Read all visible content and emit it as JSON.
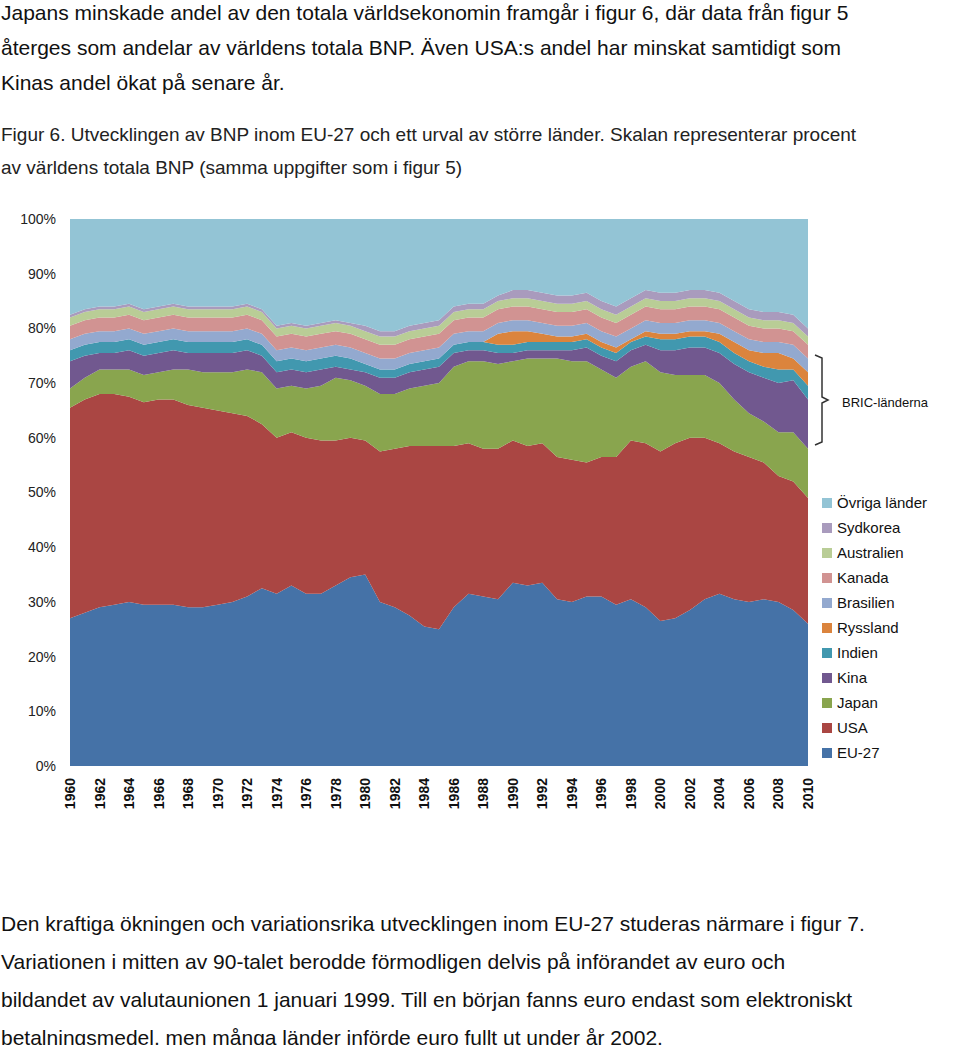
{
  "document": {
    "text_top": [
      "Japans minskade andel av den totala världsekonomin framgår i figur 6, där data från figur 5",
      "återges som andelar av världens totala BNP. Även USA:s andel har minskat samtidigt som",
      "Kinas andel ökat på senare år."
    ],
    "caption": [
      "Figur 6. Utvecklingen av BNP inom EU-27 och ett urval av större länder. Skalan representerar procent",
      "av världens totala BNP (samma uppgifter som i figur 5)"
    ],
    "text_bottom": [
      "Den kraftiga ökningen och variationsrika utvecklingen inom EU-27 studeras närmare i figur 7.",
      "Variationen i mitten av 90-talet berodde förmodligen delvis på införandet av euro och",
      "bildandet av valutaunionen 1 januari 1999. Till en början fanns euro endast som elektroniskt",
      "betalningsmedel, men många länder införde euro fullt ut under år 2002."
    ]
  },
  "chart_data": {
    "type": "area",
    "stacked": true,
    "grid": false,
    "legend": "right",
    "annotations": [
      {
        "text": "BRIC-länderna"
      }
    ],
    "x": [
      1960,
      1961,
      1962,
      1963,
      1964,
      1965,
      1966,
      1967,
      1968,
      1969,
      1970,
      1971,
      1972,
      1973,
      1974,
      1975,
      1976,
      1977,
      1978,
      1979,
      1980,
      1981,
      1982,
      1983,
      1984,
      1985,
      1986,
      1987,
      1988,
      1989,
      1990,
      1991,
      1992,
      1993,
      1994,
      1995,
      1996,
      1997,
      1998,
      1999,
      2000,
      2001,
      2002,
      2003,
      2004,
      2005,
      2006,
      2007,
      2008,
      2009,
      2010
    ],
    "xlim": [
      1960,
      2010
    ],
    "xticks": [
      1960,
      1962,
      1964,
      1966,
      1968,
      1970,
      1972,
      1974,
      1976,
      1978,
      1980,
      1982,
      1984,
      1986,
      1988,
      1990,
      1992,
      1994,
      1996,
      1998,
      2000,
      2002,
      2004,
      2006,
      2008,
      2010
    ],
    "ylim": [
      0,
      100
    ],
    "yticks": [
      {
        "value": 0,
        "label": "0%"
      },
      {
        "value": 10,
        "label": "10%"
      },
      {
        "value": 20,
        "label": "20%"
      },
      {
        "value": 30,
        "label": "30%"
      },
      {
        "value": 40,
        "label": "40%"
      },
      {
        "value": 50,
        "label": "50%"
      },
      {
        "value": 60,
        "label": "60%"
      },
      {
        "value": 70,
        "label": "70%"
      },
      {
        "value": 80,
        "label": "80%"
      },
      {
        "value": 90,
        "label": "90%"
      },
      {
        "value": 100,
        "label": "100%"
      }
    ],
    "series": [
      {
        "name": "EU-27",
        "color": "#4572a7",
        "values": [
          27,
          28,
          29,
          29.5,
          30,
          29.5,
          29.5,
          29.5,
          29,
          29,
          29.5,
          30,
          31,
          32.5,
          31.5,
          33,
          31.5,
          31.5,
          33,
          34.5,
          35,
          30,
          29,
          27.5,
          25.5,
          25,
          29,
          31.5,
          31,
          30.5,
          33.5,
          33,
          33.5,
          30.5,
          30,
          31,
          31,
          29.5,
          30.5,
          29,
          26.5,
          27,
          28.5,
          30.5,
          31.5,
          30.5,
          30,
          30.5,
          30,
          28.5,
          26
        ]
      },
      {
        "name": "USA",
        "color": "#aa4643",
        "values": [
          38.5,
          39,
          39,
          38.5,
          37.5,
          37,
          37.5,
          37.5,
          37,
          36.5,
          35.5,
          34.5,
          33,
          30,
          28.5,
          28,
          28.5,
          28,
          26.5,
          25.5,
          24.5,
          27.5,
          29,
          31,
          33,
          33.5,
          29.5,
          27.5,
          27,
          27.5,
          26,
          25.5,
          25.5,
          26,
          26,
          24.5,
          25.5,
          27,
          29,
          30,
          31,
          32,
          31.5,
          29.5,
          27.5,
          27,
          26.5,
          25,
          23,
          23.5,
          23
        ]
      },
      {
        "name": "Japan",
        "color": "#89a54e",
        "values": [
          3.5,
          4,
          4.5,
          4.5,
          5,
          5,
          5,
          5.5,
          6.5,
          6.5,
          7,
          7.5,
          8.5,
          9.5,
          9,
          8.5,
          9,
          10,
          11.5,
          10.5,
          10,
          10.5,
          10,
          10.5,
          11,
          11.5,
          14.5,
          15,
          16,
          15.5,
          14.5,
          16,
          15.5,
          18,
          18,
          18.5,
          16,
          14.5,
          13.5,
          15,
          14.5,
          12.5,
          11.5,
          11.5,
          11,
          9.5,
          8,
          7.5,
          8,
          9,
          9
        ]
      },
      {
        "name": "Kina",
        "color": "#71588f",
        "values": [
          5,
          4,
          3,
          3,
          3.5,
          3.5,
          3.5,
          3.5,
          3,
          3.5,
          3.5,
          3.5,
          3.5,
          3,
          3,
          3,
          3,
          3,
          2,
          2,
          2.5,
          3,
          3,
          3,
          3,
          3,
          2.5,
          2,
          2,
          2,
          1.5,
          1.5,
          1.5,
          1.5,
          2,
          2.5,
          2.5,
          3,
          3,
          3,
          4,
          4.5,
          5,
          5,
          5.5,
          6.5,
          7.5,
          8,
          9,
          9.5,
          9
        ]
      },
      {
        "name": "Indien",
        "color": "#4198af",
        "values": [
          2,
          2,
          2,
          2,
          2,
          2,
          2,
          2,
          2,
          2,
          2,
          2,
          2,
          2,
          2,
          2,
          2,
          2,
          2,
          2,
          1.5,
          1.5,
          1.5,
          1.5,
          1.5,
          1.5,
          1.5,
          1.5,
          1.5,
          1.5,
          1.5,
          1.5,
          1.5,
          1.5,
          1.5,
          1.5,
          1.5,
          1.5,
          1.5,
          1.5,
          2,
          2,
          2,
          2,
          2,
          2,
          2,
          2,
          2.5,
          2,
          2.5
        ]
      },
      {
        "name": "Ryssland",
        "color": "#db843d",
        "values": [
          0,
          0,
          0,
          0,
          0,
          0,
          0,
          0,
          0,
          0,
          0,
          0,
          0,
          0,
          0,
          0,
          0,
          0,
          0,
          0,
          0,
          0,
          0,
          0,
          0,
          0,
          0,
          0,
          0,
          2,
          2.5,
          2,
          1.5,
          1,
          1,
          1,
          1,
          1,
          0.5,
          1,
          1,
          1,
          1,
          1,
          1.5,
          2,
          2,
          2.5,
          3,
          2,
          2.5
        ]
      },
      {
        "name": "Brasilien",
        "color": "#93a9cf",
        "values": [
          2,
          2,
          2,
          2,
          2,
          2,
          2,
          2,
          2,
          2,
          2,
          2,
          2,
          2,
          2,
          2,
          2,
          2,
          2,
          2,
          2,
          2,
          2,
          2,
          2,
          2,
          2,
          2,
          2,
          2,
          2,
          2,
          2,
          2,
          2,
          2,
          2,
          2,
          2,
          2,
          2,
          2,
          2,
          2,
          2,
          2,
          2,
          2,
          2,
          2.5,
          2.5
        ]
      },
      {
        "name": "Kanada",
        "color": "#d19392",
        "values": [
          2.5,
          2.5,
          2.5,
          2.5,
          2.5,
          2.5,
          2.5,
          2.5,
          2.5,
          2.5,
          2.5,
          2.5,
          2.5,
          2.5,
          2.5,
          2.5,
          2.5,
          2.5,
          2.5,
          2.5,
          2.5,
          2.5,
          2.5,
          2.5,
          2.5,
          2.5,
          2.5,
          2.5,
          2.5,
          2.5,
          2.5,
          2.5,
          2.5,
          2.5,
          2.5,
          2.5,
          2.5,
          2.5,
          2.5,
          2.5,
          2.5,
          2.5,
          2.5,
          2.5,
          2.5,
          2.5,
          2.5,
          2.5,
          2.5,
          2.5,
          2.5
        ]
      },
      {
        "name": "Australien",
        "color": "#b9cd96",
        "values": [
          1.5,
          1.5,
          1.5,
          1.5,
          1.5,
          1.5,
          1.5,
          1.5,
          1.5,
          1.5,
          1.5,
          1.5,
          1.5,
          1.5,
          1.5,
          1.5,
          1.5,
          1.5,
          1.5,
          1.5,
          1.5,
          1.5,
          1.5,
          1.5,
          1.5,
          1.5,
          1.5,
          1.5,
          1.5,
          1.5,
          1.5,
          1.5,
          1.5,
          1.5,
          1.5,
          1.5,
          1.5,
          1.5,
          1.5,
          1.5,
          1.5,
          1.5,
          1.5,
          1.5,
          1.5,
          1.5,
          1.5,
          1.5,
          1.5,
          1.5,
          1.5
        ]
      },
      {
        "name": "Sydkorea",
        "color": "#a99bbd",
        "values": [
          0.5,
          0.5,
          0.5,
          0.5,
          0.5,
          0.5,
          0.5,
          0.5,
          0.5,
          0.5,
          0.5,
          0.5,
          0.5,
          0.5,
          0.5,
          0.5,
          0.5,
          0.5,
          0.5,
          0.5,
          1,
          1,
          1,
          1,
          1,
          1,
          1,
          1,
          1,
          1,
          1.5,
          1.5,
          1.5,
          1.5,
          1.5,
          1.5,
          1.5,
          1.5,
          1.5,
          1.5,
          1.5,
          1.5,
          1.5,
          1.5,
          1.5,
          1.5,
          1.5,
          1.5,
          1.5,
          1.5,
          1.5
        ]
      },
      {
        "name": "Övriga länder",
        "color": "#93c4d5",
        "values": [
          17.5,
          16.5,
          16,
          16,
          15.5,
          16.5,
          16,
          15.5,
          16,
          16,
          16,
          16,
          15.5,
          16.5,
          19.5,
          19,
          19.5,
          19,
          18.5,
          19,
          19.5,
          20.5,
          20.5,
          19.5,
          19,
          18.5,
          16,
          15.5,
          15.5,
          14,
          13,
          13,
          13.5,
          14,
          14,
          13.5,
          15,
          16,
          14.5,
          13,
          13.5,
          13.5,
          13,
          13,
          13.5,
          15,
          16.5,
          17,
          17,
          17.5,
          20
        ]
      }
    ]
  }
}
